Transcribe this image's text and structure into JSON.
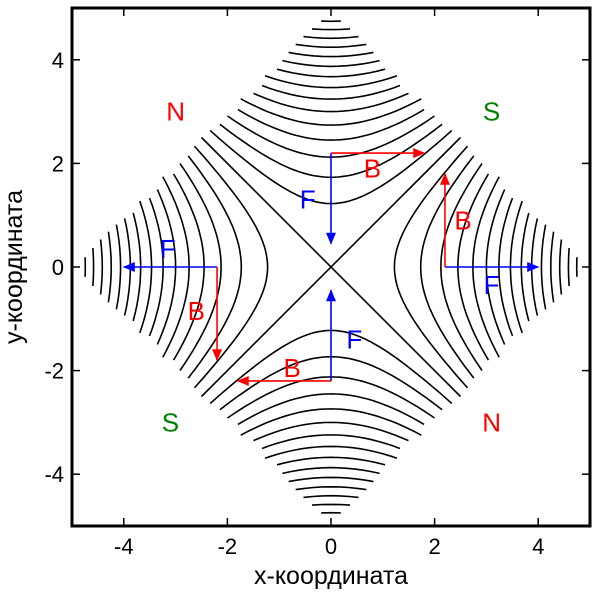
{
  "chart_data": {
    "type": "contour",
    "xlabel": "x-координата",
    "ylabel": "y-координата",
    "xlim": [
      -5,
      5
    ],
    "ylim": [
      -5,
      5
    ],
    "x_ticks": [
      "-4",
      "-2",
      "0",
      "2",
      "4"
    ],
    "y_ticks": [
      "4",
      "2",
      "0",
      "-2",
      "-4"
    ],
    "field": "x^2 - y^2",
    "region": "|x| + |y| <= 5",
    "contour_levels": [
      -24,
      -22.5,
      -21,
      -19.5,
      -18,
      -16.5,
      -15,
      -13.5,
      -12,
      -10.5,
      -9,
      -7.5,
      -6,
      -4.5,
      -3,
      -1.5,
      0,
      1.5,
      3,
      4.5,
      6,
      7.5,
      9,
      10.5,
      12,
      13.5,
      15,
      16.5,
      18,
      19.5,
      21,
      22.5,
      24
    ],
    "poles": [
      {
        "label": "N",
        "x": -3.0,
        "y": 3.0,
        "color": "#ff0000"
      },
      {
        "label": "S",
        "x": 3.1,
        "y": 3.0,
        "color": "#008000"
      },
      {
        "label": "S",
        "x": -3.1,
        "y": -3.0,
        "color": "#008000"
      },
      {
        "label": "N",
        "x": 3.1,
        "y": -3.0,
        "color": "#ff0000"
      }
    ],
    "arrows": [
      {
        "label": "F",
        "x0": 0,
        "y0": 2.2,
        "x1": 0,
        "y1": 0.45,
        "color": "#0000ff",
        "lx": -0.45,
        "ly": 1.3
      },
      {
        "label": "B",
        "x0": 0,
        "y0": 2.2,
        "x1": 1.8,
        "y1": 2.2,
        "color": "#ff0000",
        "lx": 0.8,
        "ly": 1.9
      },
      {
        "label": "F",
        "x0": 0,
        "y0": -2.2,
        "x1": 0,
        "y1": -0.45,
        "color": "#0000ff",
        "lx": 0.45,
        "ly": -1.4
      },
      {
        "label": "B",
        "x0": 0,
        "y0": -2.2,
        "x1": -1.8,
        "y1": -2.2,
        "color": "#ff0000",
        "lx": -0.75,
        "ly": -1.95
      },
      {
        "label": "F",
        "x0": -2.2,
        "y0": 0,
        "x1": -4.0,
        "y1": 0,
        "color": "#0000ff",
        "lx": -3.15,
        "ly": 0.35
      },
      {
        "label": "B",
        "x0": -2.2,
        "y0": 0,
        "x1": -2.2,
        "y1": -1.8,
        "color": "#ff0000",
        "lx": -2.6,
        "ly": -0.85
      },
      {
        "label": "F",
        "x0": 2.2,
        "y0": 0,
        "x1": 4.0,
        "y1": 0,
        "color": "#0000ff",
        "lx": 3.1,
        "ly": -0.35
      },
      {
        "label": "B",
        "x0": 2.2,
        "y0": 0,
        "x1": 2.2,
        "y1": 1.8,
        "color": "#ff0000",
        "lx": 2.55,
        "ly": 0.9
      }
    ]
  }
}
